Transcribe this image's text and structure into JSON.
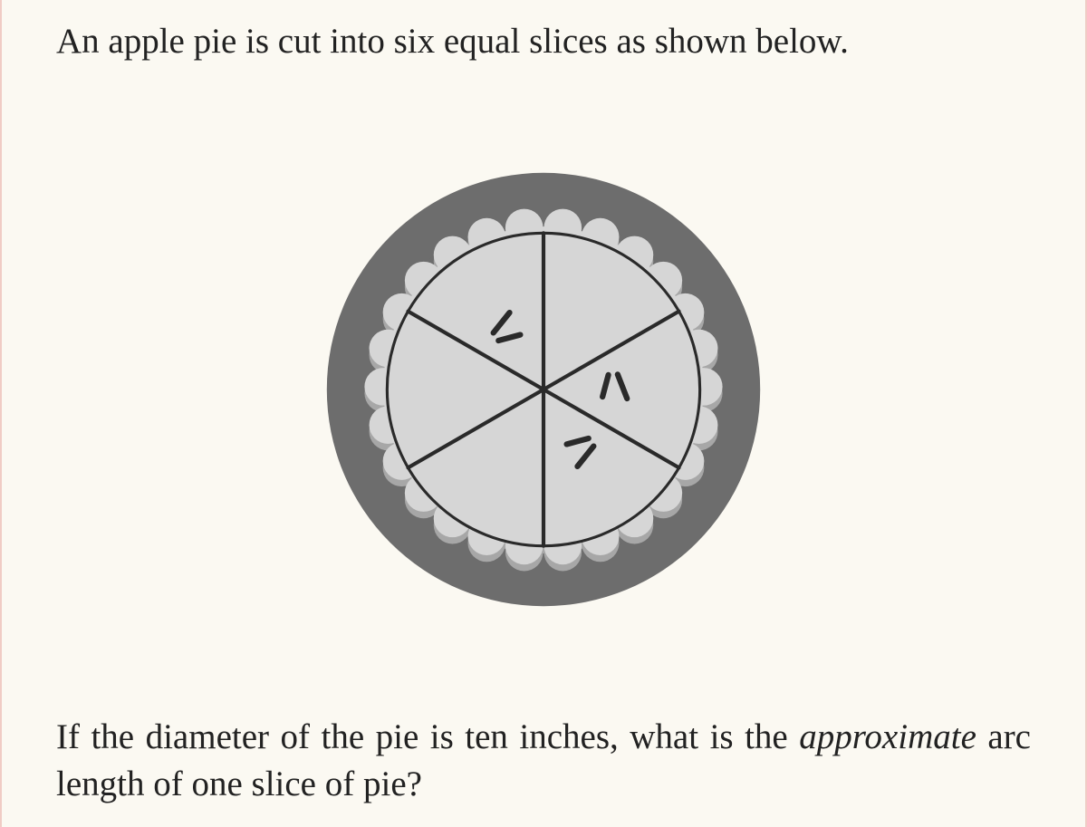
{
  "page": {
    "background_color": "#fbf9f2",
    "border_color": "#f0ccc5",
    "text_color": "#222222",
    "font_family": "Georgia, Times New Roman, serif",
    "body_fontsize_pt": 29
  },
  "problem": {
    "intro_text": "An apple pie is cut into six equal slices as shown below.",
    "question_prefix": "If the diameter of the pie is ten inches, what is the ",
    "question_emph": "approximate",
    "question_suffix": " arc length of one slice of pie?"
  },
  "pie_diagram": {
    "type": "diagram",
    "num_slices": 6,
    "outer_radius": 230,
    "rim_inner_radius": 184,
    "crimp_bump_radius": 20,
    "crimp_base_radius": 170,
    "filling_radius": 166,
    "cut_line_width": 4,
    "tick_length": 32,
    "tick_gap": 20,
    "tick_stroke_width": 6,
    "colors": {
      "pan_rim": "#6d6d6d",
      "crimp_shadow": "#a7a7a7",
      "crimp": "#d6d6d6",
      "filling": "#d6d6d6",
      "cut_line": "#2a2a2a",
      "tick": "#2a2a2a"
    },
    "slice_boundary_angles_deg": [
      90,
      150,
      210,
      270,
      330,
      30
    ],
    "tick_bisector_angles_deg": [
      120,
      300,
      360
    ]
  }
}
